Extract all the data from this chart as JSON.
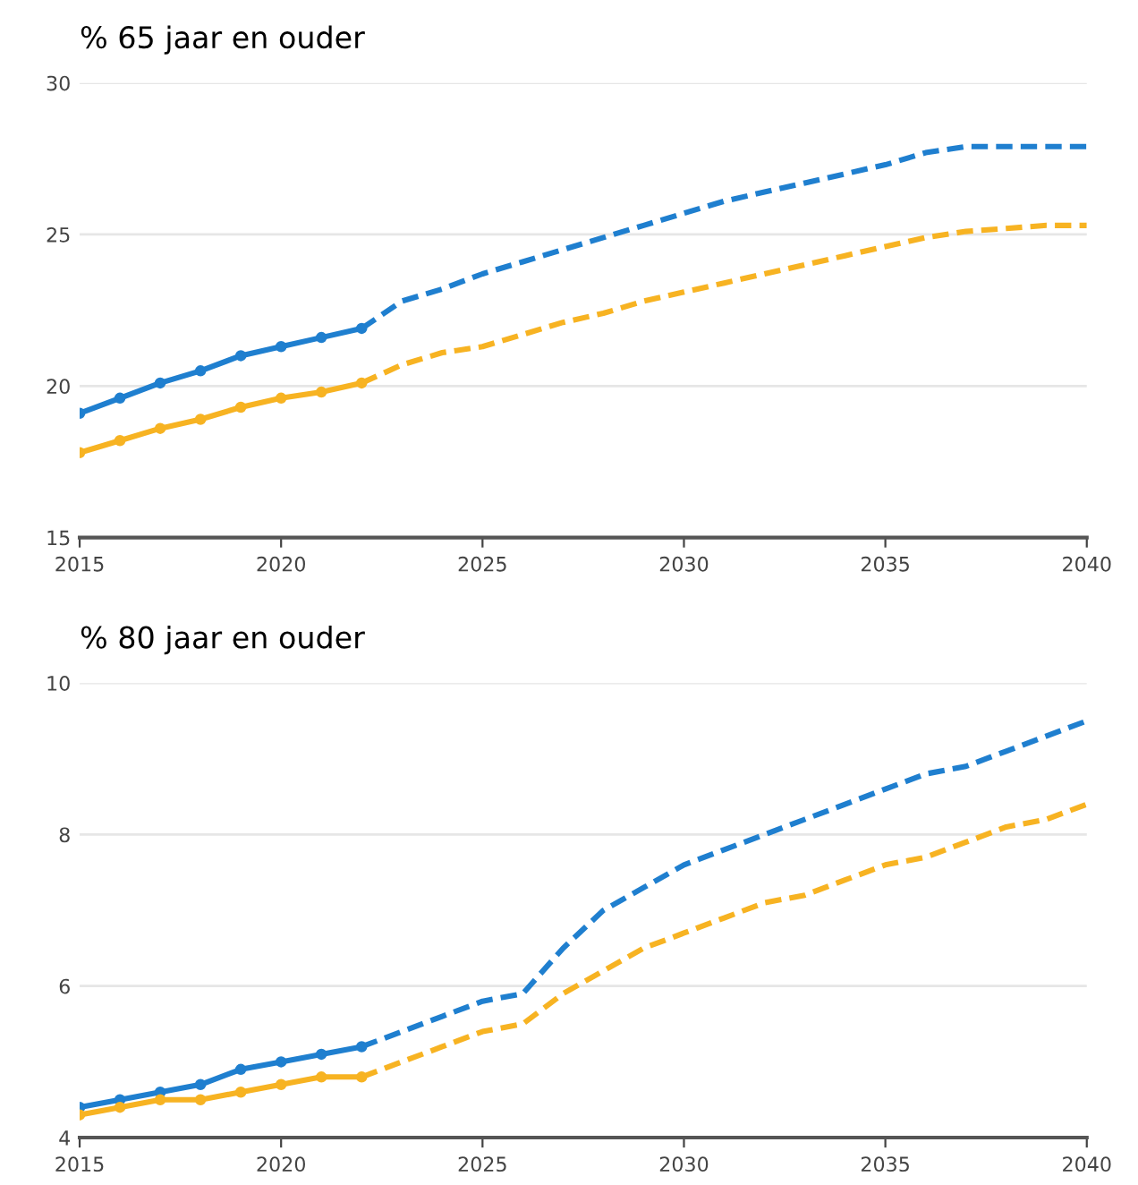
{
  "chart_data": [
    {
      "type": "line",
      "title": "% 65 jaar en ouder",
      "xlim": [
        2015,
        2040
      ],
      "xticks": [
        2015,
        2020,
        2025,
        2030,
        2035,
        2040
      ],
      "ylim": [
        15,
        30
      ],
      "yticks": [
        15,
        20,
        25,
        30
      ],
      "grid": "y",
      "series": [
        {
          "color": "#1f7fcf",
          "line_style": "solid",
          "marker": "circle",
          "x": [
            2015,
            2016,
            2017,
            2018,
            2019,
            2020,
            2021,
            2022
          ],
          "values": [
            19.1,
            19.6,
            20.1,
            20.5,
            21.0,
            21.3,
            21.6,
            21.9
          ]
        },
        {
          "color": "#1f7fcf",
          "line_style": "dashed",
          "marker": "none",
          "x": [
            2022,
            2023,
            2024,
            2025,
            2026,
            2027,
            2028,
            2029,
            2030,
            2031,
            2032,
            2033,
            2034,
            2035,
            2036,
            2037,
            2038,
            2039,
            2040
          ],
          "values": [
            21.9,
            22.8,
            23.2,
            23.7,
            24.1,
            24.5,
            24.9,
            25.3,
            25.7,
            26.1,
            26.4,
            26.7,
            27.0,
            27.3,
            27.7,
            27.9,
            27.9,
            27.9,
            27.9
          ]
        },
        {
          "color": "#f7b322",
          "line_style": "solid",
          "marker": "circle",
          "x": [
            2015,
            2016,
            2017,
            2018,
            2019,
            2020,
            2021,
            2022
          ],
          "values": [
            17.8,
            18.2,
            18.6,
            18.9,
            19.3,
            19.6,
            19.8,
            20.1
          ]
        },
        {
          "color": "#f7b322",
          "line_style": "dashed",
          "marker": "none",
          "x": [
            2022,
            2023,
            2024,
            2025,
            2026,
            2027,
            2028,
            2029,
            2030,
            2031,
            2032,
            2033,
            2034,
            2035,
            2036,
            2037,
            2038,
            2039,
            2040
          ],
          "values": [
            20.1,
            20.7,
            21.1,
            21.3,
            21.7,
            22.1,
            22.4,
            22.8,
            23.1,
            23.4,
            23.7,
            24.0,
            24.3,
            24.6,
            24.9,
            25.1,
            25.2,
            25.3,
            25.3
          ]
        }
      ]
    },
    {
      "type": "line",
      "title": "% 80 jaar en ouder",
      "xlim": [
        2015,
        2040
      ],
      "xticks": [
        2015,
        2020,
        2025,
        2030,
        2035,
        2040
      ],
      "ylim": [
        4,
        10
      ],
      "yticks": [
        4,
        6,
        8,
        10
      ],
      "grid": "y",
      "series": [
        {
          "color": "#1f7fcf",
          "line_style": "solid",
          "marker": "circle",
          "x": [
            2015,
            2016,
            2017,
            2018,
            2019,
            2020,
            2021,
            2022
          ],
          "values": [
            4.4,
            4.5,
            4.6,
            4.7,
            4.9,
            5.0,
            5.1,
            5.2
          ]
        },
        {
          "color": "#1f7fcf",
          "line_style": "dashed",
          "marker": "none",
          "x": [
            2022,
            2023,
            2024,
            2025,
            2026,
            2027,
            2028,
            2029,
            2030,
            2031,
            2032,
            2033,
            2034,
            2035,
            2036,
            2037,
            2038,
            2039,
            2040
          ],
          "values": [
            5.2,
            5.4,
            5.6,
            5.8,
            5.9,
            6.5,
            7.0,
            7.3,
            7.6,
            7.8,
            8.0,
            8.2,
            8.4,
            8.6,
            8.8,
            8.9,
            9.1,
            9.3,
            9.5
          ]
        },
        {
          "color": "#f7b322",
          "line_style": "solid",
          "marker": "circle",
          "x": [
            2015,
            2016,
            2017,
            2018,
            2019,
            2020,
            2021,
            2022
          ],
          "values": [
            4.3,
            4.4,
            4.5,
            4.5,
            4.6,
            4.7,
            4.8,
            4.8
          ]
        },
        {
          "color": "#f7b322",
          "line_style": "dashed",
          "marker": "none",
          "x": [
            2022,
            2023,
            2024,
            2025,
            2026,
            2027,
            2028,
            2029,
            2030,
            2031,
            2032,
            2033,
            2034,
            2035,
            2036,
            2037,
            2038,
            2039,
            2040
          ],
          "values": [
            4.8,
            5.0,
            5.2,
            5.4,
            5.5,
            5.9,
            6.2,
            6.5,
            6.7,
            6.9,
            7.1,
            7.2,
            7.4,
            7.6,
            7.7,
            7.9,
            8.1,
            8.2,
            8.4
          ]
        }
      ]
    }
  ]
}
